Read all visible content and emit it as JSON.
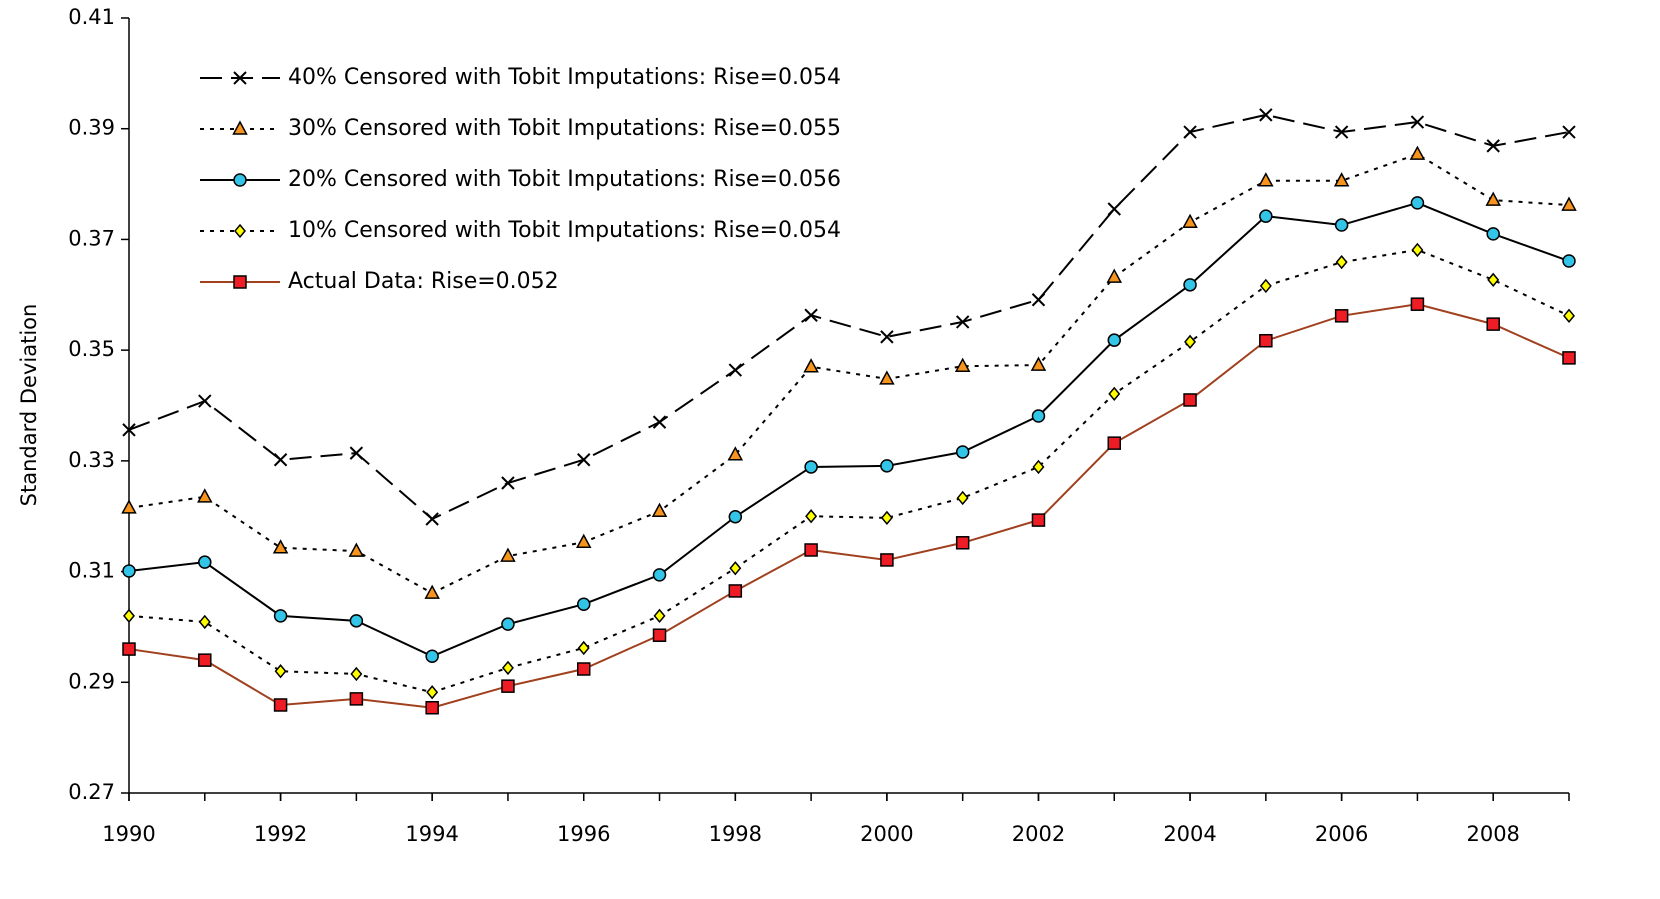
{
  "chart_data": {
    "type": "line",
    "y_label": "Standard Deviation",
    "x": [
      1990,
      1991,
      1992,
      1993,
      1994,
      1995,
      1996,
      1997,
      1998,
      1999,
      2000,
      2001,
      2002,
      2003,
      2004,
      2005,
      2006,
      2007,
      2008,
      2009
    ],
    "xlim": [
      1990,
      2009
    ],
    "xticks": [
      1990,
      1992,
      1994,
      1996,
      1998,
      2000,
      2002,
      2004,
      2006,
      2008
    ],
    "ylim": [
      0.27,
      0.41
    ],
    "yticks": [
      0.27,
      0.29,
      0.31,
      0.33,
      0.35,
      0.37,
      0.39,
      0.41
    ],
    "legend": "upper left",
    "series": [
      {
        "name": "40% Censored with Tobit Imputations: Rise=0.054",
        "color": "#000000",
        "line": "dashed",
        "marker": "x",
        "values": [
          0.3356,
          0.3408,
          0.3302,
          0.3314,
          0.3195,
          0.326,
          0.3302,
          0.337,
          0.3464,
          0.3563,
          0.3524,
          0.3551,
          0.3591,
          0.3755,
          0.3894,
          0.3925,
          0.3894,
          0.3912,
          0.3869,
          0.3894
        ]
      },
      {
        "name": "30% Censored with Tobit Imputations: Rise=0.055",
        "color": "#f7941d",
        "line": "dotted",
        "marker": "triangle",
        "values": [
          0.3215,
          0.3235,
          0.3143,
          0.3137,
          0.3061,
          0.3128,
          0.3153,
          0.3209,
          0.3311,
          0.347,
          0.3448,
          0.3471,
          0.3473,
          0.3632,
          0.3731,
          0.3806,
          0.3806,
          0.3854,
          0.3771,
          0.3762
        ]
      },
      {
        "name": "20% Censored with Tobit Imputations: Rise=0.056",
        "color": "#33c5e8",
        "line": "solid",
        "marker": "circle",
        "values": [
          0.3101,
          0.3117,
          0.302,
          0.3011,
          0.2947,
          0.3005,
          0.3041,
          0.3094,
          0.3199,
          0.3289,
          0.3291,
          0.3316,
          0.3381,
          0.3518,
          0.3618,
          0.3742,
          0.3726,
          0.3766,
          0.371,
          0.3661
        ]
      },
      {
        "name": "10% Censored with Tobit Imputations: Rise=0.054",
        "color": "#ffff00",
        "line": "dotted",
        "marker": "diamond",
        "values": [
          0.302,
          0.3009,
          0.292,
          0.2915,
          0.2882,
          0.2926,
          0.2962,
          0.302,
          0.3106,
          0.32,
          0.3197,
          0.3233,
          0.3289,
          0.3421,
          0.3515,
          0.3616,
          0.3659,
          0.3681,
          0.3627,
          0.3562
        ]
      },
      {
        "name": "Actual Data: Rise=0.052",
        "color": "#ee1c24",
        "line_color": "#a0401e",
        "line": "solid",
        "marker": "square",
        "values": [
          0.296,
          0.294,
          0.2859,
          0.287,
          0.2854,
          0.2893,
          0.2924,
          0.2985,
          0.3065,
          0.3139,
          0.3121,
          0.3152,
          0.3193,
          0.3332,
          0.341,
          0.3517,
          0.3562,
          0.3583,
          0.3547,
          0.3486
        ]
      }
    ]
  }
}
